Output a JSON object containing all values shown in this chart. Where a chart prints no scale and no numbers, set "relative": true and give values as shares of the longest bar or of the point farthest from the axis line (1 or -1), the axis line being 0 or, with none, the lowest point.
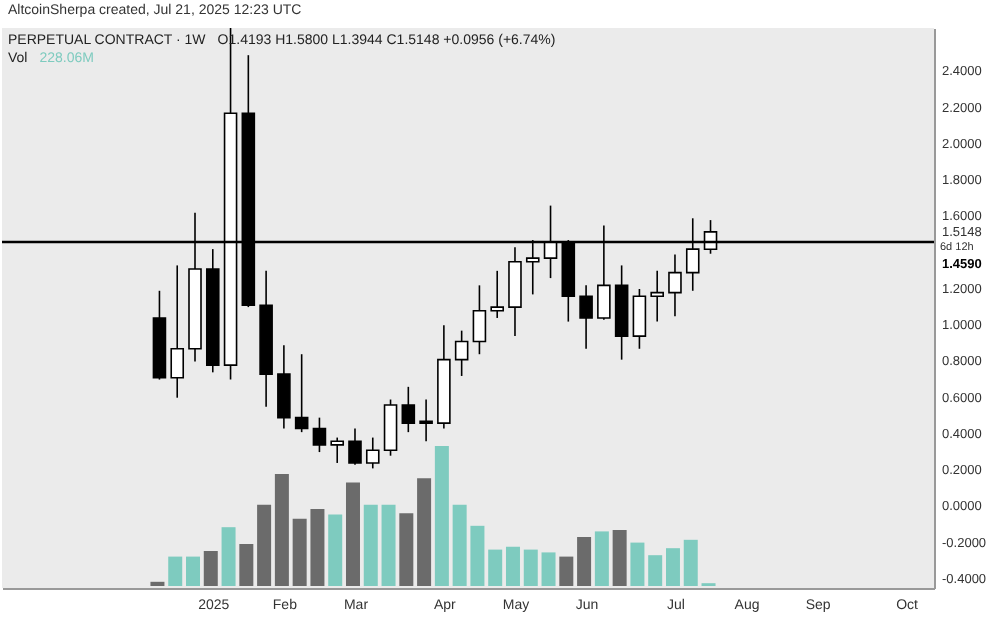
{
  "chart_data": [
    {
      "type": "candlestick",
      "title": "PERPETUAL CONTRACT · 1W",
      "annotations": [
        "AltcoinSherpa created, Jul 21, 2025 12:23 UTC",
        "O1.4193 H1.5800 L1.3944 C1.5148 +0.0956 (+6.74%)",
        "6d 12h"
      ],
      "x": [
        "2024-12-16",
        "2024-12-23",
        "2024-12-30",
        "2025-01-06",
        "2025-01-13",
        "2025-01-20",
        "2025-01-27",
        "2025-02-03",
        "2025-02-10",
        "2025-02-17",
        "2025-02-24",
        "2025-03-03",
        "2025-03-10",
        "2025-03-17",
        "2025-03-24",
        "2025-03-31",
        "2025-04-07",
        "2025-04-14",
        "2025-04-21",
        "2025-04-28",
        "2025-05-05",
        "2025-05-12",
        "2025-05-19",
        "2025-05-26",
        "2025-06-02",
        "2025-06-09",
        "2025-06-16",
        "2025-06-23",
        "2025-06-30",
        "2025-07-07",
        "2025-07-14",
        "2025-07-21"
      ],
      "ohlc": [
        [
          1.04,
          1.19,
          0.7,
          0.71
        ],
        [
          0.71,
          1.33,
          0.6,
          0.87
        ],
        [
          0.87,
          1.62,
          0.8,
          1.31
        ],
        [
          1.31,
          1.42,
          0.74,
          0.78
        ],
        [
          0.78,
          2.64,
          0.7,
          2.17
        ],
        [
          2.17,
          2.49,
          1.1,
          1.11
        ],
        [
          1.11,
          1.3,
          0.55,
          0.73
        ],
        [
          0.73,
          0.89,
          0.43,
          0.49
        ],
        [
          0.49,
          0.84,
          0.41,
          0.43
        ],
        [
          0.43,
          0.49,
          0.3,
          0.34
        ],
        [
          0.34,
          0.38,
          0.24,
          0.36
        ],
        [
          0.36,
          0.43,
          0.23,
          0.24
        ],
        [
          0.24,
          0.38,
          0.21,
          0.31
        ],
        [
          0.31,
          0.59,
          0.28,
          0.56
        ],
        [
          0.56,
          0.66,
          0.41,
          0.46
        ],
        [
          0.47,
          0.59,
          0.36,
          0.46
        ],
        [
          0.46,
          1.0,
          0.43,
          0.81
        ],
        [
          0.81,
          0.97,
          0.72,
          0.91
        ],
        [
          0.91,
          1.22,
          0.84,
          1.08
        ],
        [
          1.08,
          1.3,
          1.04,
          1.1
        ],
        [
          1.1,
          1.43,
          0.94,
          1.35
        ],
        [
          1.35,
          1.47,
          1.17,
          1.37
        ],
        [
          1.37,
          1.66,
          1.26,
          1.46
        ],
        [
          1.46,
          1.47,
          1.02,
          1.16
        ],
        [
          1.16,
          1.22,
          0.87,
          1.04
        ],
        [
          1.04,
          1.55,
          1.03,
          1.22
        ],
        [
          1.22,
          1.33,
          0.81,
          0.94
        ],
        [
          0.94,
          1.2,
          0.87,
          1.16
        ],
        [
          1.16,
          1.3,
          1.02,
          1.18
        ],
        [
          1.18,
          1.39,
          1.05,
          1.29
        ],
        [
          1.29,
          1.59,
          1.19,
          1.42
        ],
        [
          1.4193,
          1.58,
          1.3944,
          1.5148
        ]
      ],
      "colors": [
        "#000000",
        "#ffffff",
        "#ffffff",
        "#000000",
        "#ffffff",
        "#000000",
        "#000000",
        "#000000",
        "#000000",
        "#000000",
        "#ffffff",
        "#000000",
        "#ffffff",
        "#ffffff",
        "#000000",
        "#000000",
        "#ffffff",
        "#ffffff",
        "#ffffff",
        "#ffffff",
        "#ffffff",
        "#ffffff",
        "#ffffff",
        "#000000",
        "#000000",
        "#ffffff",
        "#000000",
        "#ffffff",
        "#ffffff",
        "#ffffff",
        "#ffffff",
        "#ffffff"
      ],
      "xlim": [
        "2024-10-15",
        "2025-10-17"
      ],
      "xticks": [
        {
          "value": "2025-01-06",
          "label": "2025"
        },
        {
          "value": "2025-02-03",
          "label": "Feb"
        },
        {
          "value": "2025-03-03",
          "label": "Mar"
        },
        {
          "value": "2025-04-07",
          "label": "Apr"
        },
        {
          "value": "2025-05-05",
          "label": "May"
        },
        {
          "value": "2025-06-02",
          "label": "Jun"
        },
        {
          "value": "2025-07-07",
          "label": "Jul"
        },
        {
          "value": "2025-08-04",
          "label": "Aug"
        },
        {
          "value": "2025-09-01",
          "label": "Sep"
        },
        {
          "value": "2025-10-06",
          "label": "Oct"
        }
      ],
      "ylim": [
        -0.45,
        2.64
      ],
      "yticks": [
        {
          "value": -0.4,
          "label": "-0.4000"
        },
        {
          "value": -0.2,
          "label": "-0.2000"
        },
        {
          "value": 0,
          "label": "0.0000"
        },
        {
          "value": 0.2,
          "label": "0.2000"
        },
        {
          "value": 0.4,
          "label": "0.4000"
        },
        {
          "value": 0.6,
          "label": "0.6000"
        },
        {
          "value": 0.8,
          "label": "0.8000"
        },
        {
          "value": 1,
          "label": "1.0000"
        },
        {
          "value": 1.2,
          "label": "1.2000"
        },
        {
          "value": 1.5148,
          "label": "1.5148"
        },
        {
          "value": 1.6,
          "label": "1.6000"
        },
        {
          "value": 1.8,
          "label": "1.8000"
        },
        {
          "value": 2,
          "label": "2.0000"
        },
        {
          "value": 2.2,
          "label": "2.2000"
        },
        {
          "value": 2.4,
          "label": "2.4000"
        }
      ],
      "ref_lines": [
        {
          "axis": "y",
          "value": 1.459,
          "label": "1.4590",
          "color": "#000000"
        }
      ]
    },
    {
      "type": "bar",
      "relative": true,
      "title": "Vol",
      "annotations": [
        "228.06M"
      ],
      "x": [
        "2024-12-16",
        "2024-12-23",
        "2024-12-30",
        "2025-01-06",
        "2025-01-13",
        "2025-01-20",
        "2025-01-27",
        "2025-02-03",
        "2025-02-10",
        "2025-02-17",
        "2025-02-24",
        "2025-03-03",
        "2025-03-10",
        "2025-03-17",
        "2025-03-24",
        "2025-03-31",
        "2025-04-07",
        "2025-04-14",
        "2025-04-21",
        "2025-04-28",
        "2025-05-05",
        "2025-05-12",
        "2025-05-19",
        "2025-05-26",
        "2025-06-02",
        "2025-06-09",
        "2025-06-16",
        "2025-06-23",
        "2025-06-30",
        "2025-07-07",
        "2025-07-14",
        "2025-07-21"
      ],
      "xlim": [
        "2024-10-15",
        "2025-10-17"
      ],
      "values": [
        0.03,
        0.21,
        0.21,
        0.25,
        0.42,
        0.3,
        0.58,
        0.8,
        0.48,
        0.55,
        0.51,
        0.74,
        0.58,
        0.58,
        0.52,
        0.77,
        1,
        0.58,
        0.43,
        0.26,
        0.28,
        0.26,
        0.24,
        0.21,
        0.35,
        0.39,
        0.4,
        0.31,
        0.22,
        0.27,
        0.33,
        0.02
      ],
      "colors": [
        "#6b6b6b",
        "#7ecbbf",
        "#7ecbbf",
        "#6b6b6b",
        "#7ecbbf",
        "#6b6b6b",
        "#6b6b6b",
        "#6b6b6b",
        "#6b6b6b",
        "#6b6b6b",
        "#7ecbbf",
        "#6b6b6b",
        "#7ecbbf",
        "#7ecbbf",
        "#6b6b6b",
        "#6b6b6b",
        "#7ecbbf",
        "#7ecbbf",
        "#7ecbbf",
        "#7ecbbf",
        "#7ecbbf",
        "#7ecbbf",
        "#7ecbbf",
        "#6b6b6b",
        "#6b6b6b",
        "#7ecbbf",
        "#6b6b6b",
        "#7ecbbf",
        "#7ecbbf",
        "#7ecbbf",
        "#7ecbbf",
        "#7ecbbf"
      ]
    }
  ]
}
